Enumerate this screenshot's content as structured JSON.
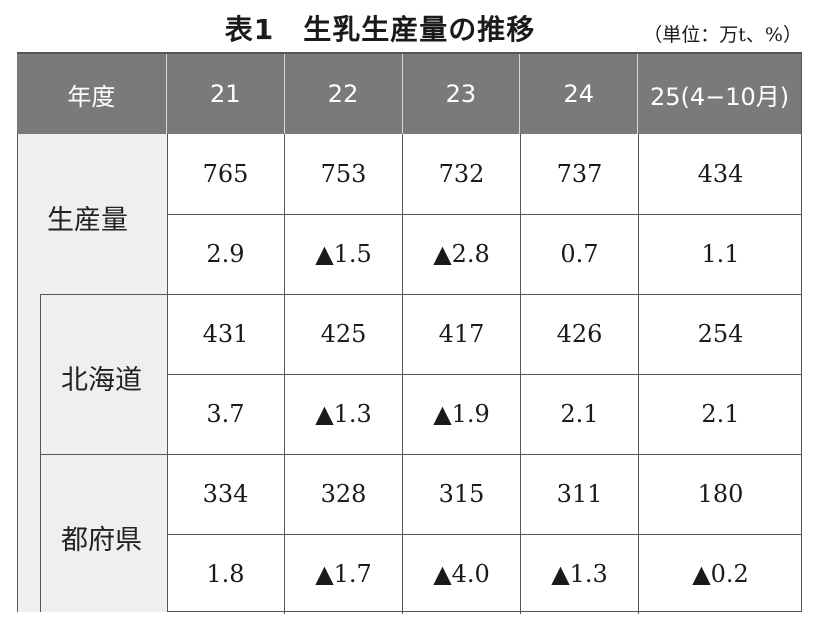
{
  "title": "表1　生乳生産量の推移",
  "unit": "（単位：万t、%）",
  "table": {
    "headers": [
      "年度",
      "21",
      "22",
      "23",
      "24",
      "25(4−10月)"
    ],
    "groups": [
      {
        "label": "生産量",
        "volume": [
          "765",
          "753",
          "732",
          "737",
          "434"
        ],
        "change": [
          "2.9",
          "▲1.5",
          "▲2.8",
          "0.7",
          "1.1"
        ]
      },
      {
        "label": "北海道",
        "volume": [
          "431",
          "425",
          "417",
          "426",
          "254"
        ],
        "change": [
          "3.7",
          "▲1.3",
          "▲1.9",
          "2.1",
          "2.1"
        ]
      },
      {
        "label": "都府県",
        "volume": [
          "334",
          "328",
          "315",
          "311",
          "180"
        ],
        "change": [
          "1.8",
          "▲1.7",
          "▲4.0",
          "▲1.3",
          "▲0.2"
        ]
      }
    ]
  }
}
